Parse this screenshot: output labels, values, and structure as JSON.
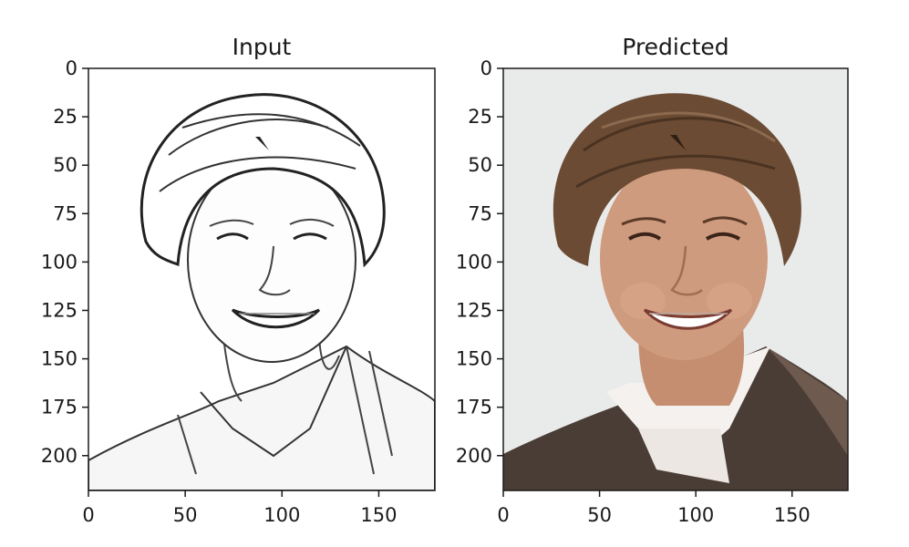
{
  "chart_data": [
    {
      "type": "image",
      "title": "Input",
      "xlim": [
        0,
        179
      ],
      "ylim": [
        218,
        0
      ],
      "xticks": [
        0,
        50,
        100,
        150
      ],
      "yticks": [
        0,
        25,
        50,
        75,
        100,
        125,
        150,
        175,
        200
      ],
      "image_content": "pencil sketch portrait"
    },
    {
      "type": "image",
      "title": "Predicted",
      "xlim": [
        0,
        179
      ],
      "ylim": [
        218,
        0
      ],
      "xticks": [
        0,
        50,
        100,
        150
      ],
      "yticks": [
        0,
        25,
        50,
        75,
        100,
        125,
        150,
        175,
        200
      ],
      "image_content": "colorized photo portrait"
    }
  ],
  "colors": {
    "axis": "#1a1a1a",
    "sketch_bg": "#ffffff",
    "photo_bg": "#e9ebeb",
    "hair": "#6b4b33",
    "skin": "#cf9b7e",
    "jacket": "#4a3d36",
    "shirt": "#f4f1ee"
  }
}
